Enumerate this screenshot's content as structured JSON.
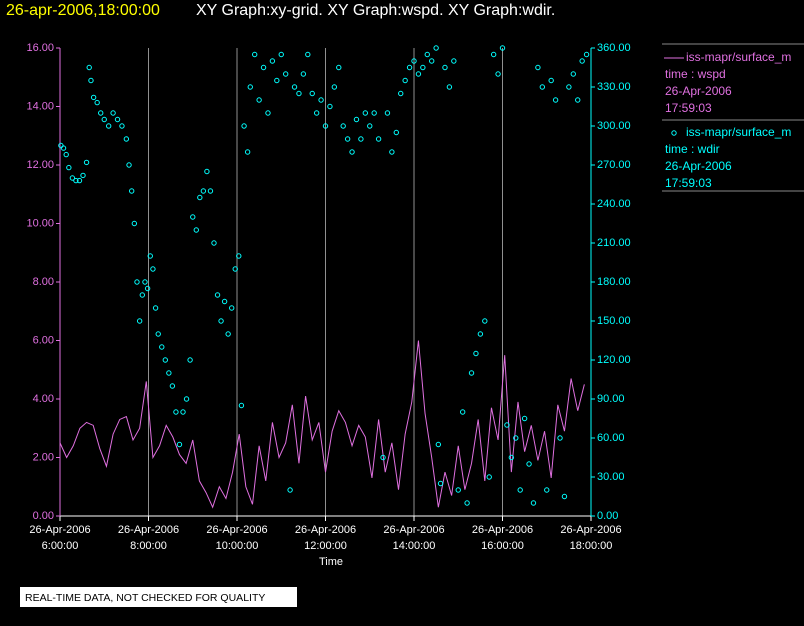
{
  "chart_data": {
    "type": "line-scatter",
    "title_time": "26-apr-2006,18:00:00",
    "title": "XY Graph:xy-grid.  XY Graph:wspd.  XY Graph:wdir.",
    "xlabel": "Time",
    "note": "REAL-TIME DATA, NOT CHECKED FOR QUALITY",
    "grid": "x",
    "xlim": [
      6,
      18
    ],
    "xticks": [
      {
        "value": 6,
        "label": [
          "26-Apr-2006",
          "6:00:00"
        ]
      },
      {
        "value": 8,
        "label": [
          "26-Apr-2006",
          "8:00:00"
        ]
      },
      {
        "value": 10,
        "label": [
          "26-Apr-2006",
          "10:00:00"
        ]
      },
      {
        "value": 12,
        "label": [
          "26-Apr-2006",
          "12:00:00"
        ]
      },
      {
        "value": 14,
        "label": [
          "26-Apr-2006",
          "14:00:00"
        ]
      },
      {
        "value": 16,
        "label": [
          "26-Apr-2006",
          "16:00:00"
        ]
      },
      {
        "value": 18,
        "label": [
          "26-Apr-2006",
          "18:00:00"
        ]
      }
    ],
    "ylim": [
      0,
      16
    ],
    "yticks": [
      {
        "value": 0,
        "label": "0.00"
      },
      {
        "value": 2,
        "label": "2.00"
      },
      {
        "value": 4,
        "label": "4.00"
      },
      {
        "value": 6,
        "label": "6.00"
      },
      {
        "value": 8,
        "label": "8.00"
      },
      {
        "value": 10,
        "label": "10.00"
      },
      {
        "value": 12,
        "label": "12.00"
      },
      {
        "value": 14,
        "label": "14.00"
      },
      {
        "value": 16,
        "label": "16.00"
      }
    ],
    "y2lim": [
      0,
      360
    ],
    "y2ticks": [
      {
        "value": 0,
        "label": "0.00"
      },
      {
        "value": 30,
        "label": "30.00"
      },
      {
        "value": 60,
        "label": "60.00"
      },
      {
        "value": 90,
        "label": "90.00"
      },
      {
        "value": 120,
        "label": "120.00"
      },
      {
        "value": 150,
        "label": "150.00"
      },
      {
        "value": 180,
        "label": "180.00"
      },
      {
        "value": 210,
        "label": "210.00"
      },
      {
        "value": 240,
        "label": "240.00"
      },
      {
        "value": 270,
        "label": "270.00"
      },
      {
        "value": 300,
        "label": "300.00"
      },
      {
        "value": 330,
        "label": "330.00"
      },
      {
        "value": 360,
        "label": "360.00"
      }
    ],
    "series": [
      {
        "name": "iss-mapr/surface_m",
        "legend_lines": [
          "time : wspd",
          "26-Apr-2006",
          "17:59:03"
        ],
        "color": "#e070e0",
        "style": "line",
        "axis": "y",
        "x": [
          6.0,
          6.15,
          6.3,
          6.45,
          6.6,
          6.75,
          6.9,
          7.05,
          7.2,
          7.35,
          7.5,
          7.65,
          7.8,
          7.95,
          8.1,
          8.25,
          8.4,
          8.55,
          8.7,
          8.85,
          9.0,
          9.15,
          9.3,
          9.45,
          9.6,
          9.75,
          9.9,
          10.05,
          10.2,
          10.35,
          10.5,
          10.65,
          10.8,
          10.95,
          11.1,
          11.25,
          11.4,
          11.55,
          11.7,
          11.85,
          12.0,
          12.15,
          12.3,
          12.45,
          12.6,
          12.75,
          12.9,
          13.05,
          13.2,
          13.35,
          13.5,
          13.65,
          13.8,
          13.95,
          14.1,
          14.25,
          14.4,
          14.55,
          14.7,
          14.85,
          15.0,
          15.15,
          15.3,
          15.45,
          15.6,
          15.75,
          15.9,
          16.05,
          16.2,
          16.35,
          16.5,
          16.65,
          16.8,
          16.95,
          17.1,
          17.25,
          17.4,
          17.55,
          17.7,
          17.85
        ],
        "values": [
          2.5,
          2.0,
          2.4,
          3.0,
          3.2,
          3.1,
          2.3,
          1.7,
          2.8,
          3.3,
          3.4,
          2.6,
          3.0,
          4.6,
          2.0,
          2.4,
          3.1,
          2.7,
          2.1,
          1.8,
          2.6,
          1.2,
          0.8,
          0.3,
          1.0,
          0.6,
          1.5,
          2.8,
          1.0,
          0.4,
          2.4,
          1.2,
          3.2,
          2.0,
          2.5,
          3.8,
          1.8,
          4.1,
          2.6,
          3.2,
          1.5,
          2.9,
          3.6,
          3.2,
          2.4,
          3.1,
          2.7,
          1.3,
          3.3,
          1.5,
          2.5,
          0.9,
          2.8,
          3.9,
          6.0,
          3.5,
          2.0,
          0.3,
          1.5,
          0.7,
          2.4,
          0.9,
          1.8,
          3.3,
          1.2,
          3.7,
          2.6,
          5.5,
          1.5,
          3.9,
          2.2,
          3.1,
          1.9,
          2.9,
          1.3,
          3.8,
          2.9,
          4.7,
          3.6,
          4.5
        ]
      },
      {
        "name": "iss-mapr/surface_m",
        "legend_lines": [
          "time : wdir",
          "26-Apr-2006",
          "17:59:03"
        ],
        "color": "#00ffff",
        "style": "circle",
        "axis": "y2",
        "x": [
          6.02,
          6.08,
          6.14,
          6.2,
          6.28,
          6.36,
          6.44,
          6.52,
          6.6,
          6.66,
          6.7,
          6.76,
          6.84,
          6.92,
          7.0,
          7.1,
          7.2,
          7.3,
          7.4,
          7.5,
          7.56,
          7.62,
          7.68,
          7.74,
          7.8,
          7.86,
          7.92,
          7.98,
          8.04,
          8.1,
          8.16,
          8.22,
          8.3,
          8.38,
          8.46,
          8.54,
          8.62,
          8.7,
          8.78,
          8.86,
          8.94,
          9.0,
          9.08,
          9.16,
          9.24,
          9.32,
          9.4,
          9.48,
          9.56,
          9.64,
          9.72,
          9.8,
          9.88,
          9.96,
          10.04,
          10.1,
          10.16,
          10.24,
          10.3,
          10.4,
          10.5,
          10.6,
          10.7,
          10.8,
          10.9,
          11.0,
          11.1,
          11.2,
          11.3,
          11.4,
          11.5,
          11.6,
          11.7,
          11.8,
          11.9,
          12.0,
          12.1,
          12.2,
          12.3,
          12.4,
          12.5,
          12.6,
          12.7,
          12.8,
          12.9,
          13.0,
          13.1,
          13.2,
          13.3,
          13.4,
          13.5,
          13.6,
          13.7,
          13.8,
          13.9,
          14.0,
          14.1,
          14.2,
          14.3,
          14.4,
          14.5,
          14.55,
          14.6,
          14.7,
          14.8,
          14.9,
          15.0,
          15.1,
          15.2,
          15.3,
          15.4,
          15.5,
          15.6,
          15.7,
          15.8,
          15.9,
          16.0,
          16.1,
          16.2,
          16.3,
          16.4,
          16.5,
          16.6,
          16.7,
          16.8,
          16.9,
          17.0,
          17.1,
          17.2,
          17.3,
          17.4,
          17.5,
          17.6,
          17.7,
          17.8,
          17.9
        ],
        "values": [
          285,
          283,
          278,
          268,
          260,
          258,
          258,
          262,
          272,
          345,
          335,
          322,
          318,
          310,
          305,
          300,
          310,
          305,
          300,
          290,
          270,
          250,
          225,
          180,
          150,
          170,
          180,
          175,
          200,
          190,
          160,
          140,
          130,
          120,
          110,
          100,
          80,
          55,
          80,
          90,
          120,
          230,
          220,
          245,
          250,
          265,
          250,
          210,
          170,
          150,
          165,
          140,
          160,
          190,
          200,
          85,
          300,
          280,
          330,
          355,
          320,
          345,
          310,
          350,
          335,
          355,
          340,
          20,
          330,
          325,
          340,
          355,
          325,
          310,
          320,
          300,
          315,
          330,
          345,
          300,
          290,
          280,
          305,
          290,
          310,
          300,
          310,
          290,
          45,
          310,
          280,
          295,
          325,
          335,
          345,
          350,
          340,
          345,
          355,
          350,
          360,
          55,
          25,
          345,
          330,
          350,
          20,
          80,
          10,
          110,
          125,
          140,
          150,
          30,
          355,
          340,
          360,
          70,
          45,
          60,
          20,
          75,
          40,
          10,
          345,
          330,
          20,
          335,
          320,
          60,
          15,
          330,
          340,
          320,
          350,
          355
        ]
      }
    ]
  }
}
